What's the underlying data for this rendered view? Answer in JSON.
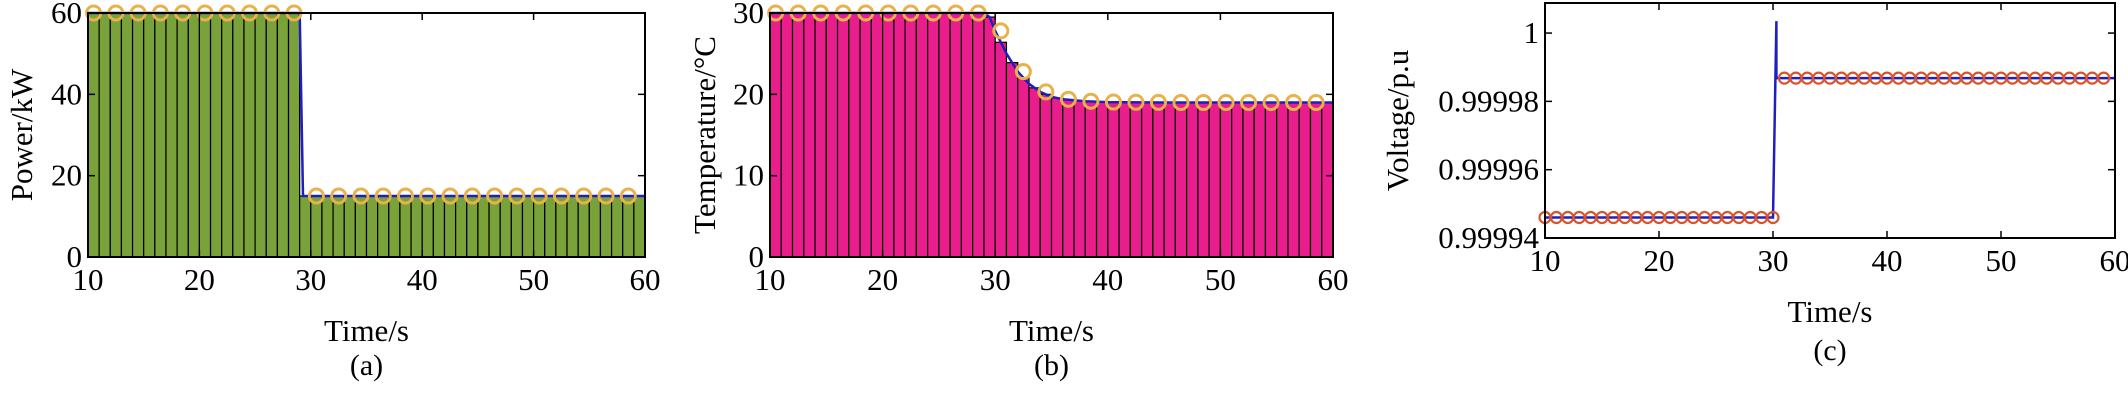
{
  "chart_data": [
    {
      "type": "bar",
      "panel": "(a)",
      "xlabel": "Time/s",
      "ylabel": "Power/kW",
      "xlim": [
        10,
        60
      ],
      "ylim": [
        0,
        60
      ],
      "xticks": [
        "10",
        "20",
        "30",
        "40",
        "50",
        "60"
      ],
      "yticks": [
        "0",
        "20",
        "40",
        "60"
      ],
      "bar_color": "#7aa23a",
      "line_color": "#1f1fbf",
      "marker_color": "#e8b24a",
      "marker_x": [
        10,
        12,
        14,
        16,
        18,
        20,
        22,
        24,
        26,
        28,
        30,
        32,
        34,
        36,
        38,
        40,
        42,
        44,
        46,
        48,
        50,
        52,
        54,
        56,
        58
      ],
      "series": [
        {
          "x": [
            10,
            29,
            29.3,
            60
          ],
          "y": [
            60,
            60,
            15,
            15
          ]
        }
      ]
    },
    {
      "type": "bar",
      "panel": "(b)",
      "xlabel": "Time/s",
      "ylabel": "Temperature/°C",
      "xlim": [
        10,
        60
      ],
      "ylim": [
        0,
        30
      ],
      "xticks": [
        "10",
        "20",
        "30",
        "40",
        "50",
        "60"
      ],
      "yticks": [
        "0",
        "10",
        "20",
        "30"
      ],
      "bar_color": "#e91e8c",
      "line_color": "#1f1fbf",
      "marker_color": "#e8b24a",
      "marker_x": [
        10,
        12,
        14,
        16,
        18,
        20,
        22,
        24,
        26,
        28,
        30,
        32,
        34,
        36,
        38,
        40,
        42,
        44,
        46,
        48,
        50,
        52,
        54,
        56,
        58
      ],
      "series": [
        {
          "x": [
            10,
            29,
            29.5,
            30,
            31,
            32,
            33,
            34,
            35,
            36,
            38,
            40,
            45,
            50,
            60
          ],
          "y": [
            30,
            30,
            29.5,
            27.8,
            25,
            22.8,
            21.3,
            20.3,
            19.7,
            19.4,
            19.15,
            19.05,
            19,
            19,
            19
          ]
        }
      ]
    },
    {
      "type": "line",
      "panel": "(c)",
      "xlabel": "Time/s",
      "ylabel": "Voltage/p.u",
      "xlim": [
        10,
        60
      ],
      "ylim": [
        0.99994,
        1.0000088
      ],
      "xticks": [
        "10",
        "20",
        "30",
        "40",
        "50",
        "60"
      ],
      "yticks": [
        "0.99994",
        "0.99996",
        "0.99998",
        "1"
      ],
      "line_color": "#1f1fbf",
      "marker_color": "#d9542a",
      "marker_x_step": 1,
      "series": [
        {
          "x": [
            10,
            30,
            30,
            30.3,
            30.3,
            60
          ],
          "y": [
            0.999946,
            0.999946,
            0.999946,
            1.0000035,
            0.9999868,
            0.9999868
          ]
        }
      ]
    }
  ]
}
